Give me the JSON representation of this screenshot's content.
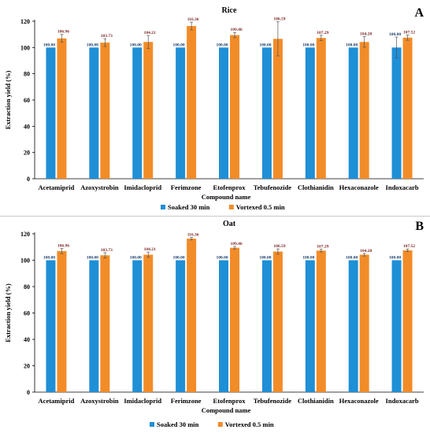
{
  "chart_data": [
    {
      "type": "bar",
      "panel_letter": "A",
      "title": "Rice",
      "xlabel": "Compound name",
      "ylabel": "Extraction yield (%)",
      "ylim": [
        0,
        120
      ],
      "yticks": [
        "0",
        "20",
        "40",
        "60",
        "80",
        "100",
        "120"
      ],
      "grid": false,
      "legend_position": "bottom-center",
      "categories": [
        "Acetamiprid",
        "Azoxystrobin",
        "Imidacloprid",
        "Ferimzone",
        "Etofenprox",
        "Tebufenozide",
        "Clothianidin",
        "Hexaconazole",
        "Indoxacarb"
      ],
      "series": [
        {
          "name": "Soaked 30 min",
          "color": "#1f8fd6",
          "values": [
            100,
            100,
            100,
            100,
            100,
            100,
            100,
            100,
            100
          ],
          "labels": [
            "100.00",
            "100.00",
            "100.00",
            "100.00",
            "100.00",
            "100.00",
            "100.00",
            "100.00",
            "100.00"
          ],
          "errors": [
            0,
            0,
            0,
            0,
            0,
            0,
            0,
            0,
            8
          ]
        },
        {
          "name": "Vortexed 0.5 min",
          "color": "#f28c28",
          "values": [
            106.96,
            103.73,
            104.21,
            116.36,
            109.46,
            106.59,
            107.29,
            104.2,
            107.52
          ],
          "labels": [
            "106.96",
            "103.73",
            "104.21",
            "116.36",
            "109.46",
            "106.59",
            "107.29",
            "104.20",
            "107.52"
          ],
          "errors": [
            3,
            3,
            5,
            3,
            2,
            13,
            2,
            4,
            2
          ]
        }
      ]
    },
    {
      "type": "bar",
      "panel_letter": "B",
      "title": "Oat",
      "xlabel": "Compound name",
      "ylabel": "Extraction yield (%)",
      "ylim": [
        0,
        120
      ],
      "yticks": [
        "0",
        "20",
        "40",
        "60",
        "80",
        "100",
        "120"
      ],
      "grid": false,
      "legend_position": "bottom-center",
      "categories": [
        "Acetamiprid",
        "Azoxystrobin",
        "Imidacloprid",
        "Ferimzone",
        "Etofenprox",
        "Tebufenozide",
        "Clothianidin",
        "Hexaconazole",
        "Indoxacarb"
      ],
      "series": [
        {
          "name": "Soaked 30 min",
          "color": "#1f8fd6",
          "values": [
            100,
            100,
            100,
            100,
            100,
            100,
            100,
            100,
            100
          ],
          "labels": [
            "100.00",
            "100.00",
            "100.00",
            "100.00",
            "100.00",
            "100.00",
            "100.00",
            "100.00",
            "100.00"
          ],
          "errors": [
            0,
            0,
            0,
            0,
            0,
            0,
            0,
            0,
            0
          ]
        },
        {
          "name": "Vortexed 0.5 min",
          "color": "#f28c28",
          "values": [
            106.96,
            103.73,
            104.21,
            116.36,
            109.46,
            106.59,
            107.29,
            104.2,
            107.52
          ],
          "labels": [
            "106.96",
            "103.73",
            "104.21",
            "116.36",
            "109.46",
            "106.59",
            "107.29",
            "104.20",
            "107.52"
          ],
          "errors": [
            2,
            2,
            2,
            1,
            1,
            2,
            1,
            1,
            1
          ]
        }
      ]
    }
  ]
}
